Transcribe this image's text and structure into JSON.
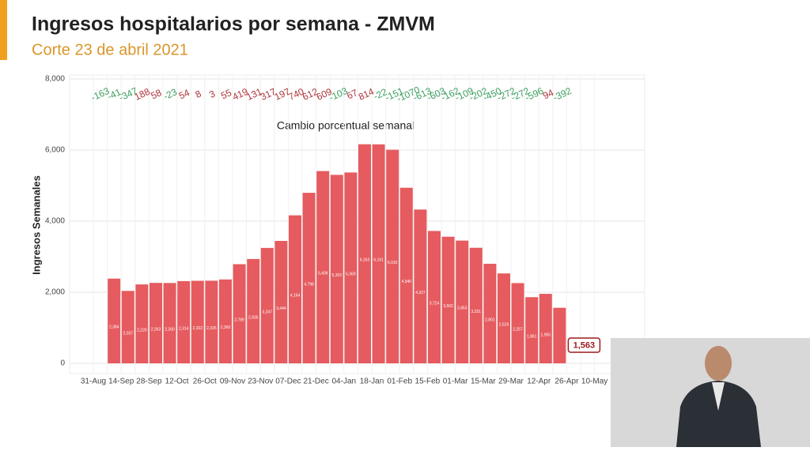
{
  "header": {
    "title": "Ingresos hospitalarios por semana - ZMVM",
    "subtitle": "Corte 23 de abril 2021"
  },
  "chart_data": {
    "type": "bar",
    "y_label": "Ingresos Semanales",
    "color": "#e55b5f",
    "categories": [
      "31-Aug",
      null,
      "14-Sep",
      null,
      "28-Sep",
      null,
      "12-Oct",
      null,
      "26-Oct",
      null,
      "09-Nov",
      null,
      "23-Nov",
      null,
      "07-Dec",
      null,
      "21-Dec",
      null,
      "04-Jan",
      null,
      "18-Jan",
      null,
      "01-Feb",
      null,
      "15-Feb",
      null,
      "01-Mar",
      null,
      "15-Mar",
      null,
      "29-Mar",
      null,
      "12-Apr",
      null,
      "26-Apr",
      null,
      "10-May"
    ],
    "values": [
      null,
      null,
      2384,
      2037,
      2220,
      2263,
      2260,
      2314,
      2322,
      2325,
      2360,
      2789,
      2935,
      3247,
      3444,
      4164,
      4798,
      5409,
      5302,
      5369,
      6163,
      6161,
      6010,
      4940,
      4327,
      3724,
      3562,
      3453,
      3251,
      2801,
      2529,
      2257,
      1861,
      1955,
      1563,
      null,
      null
    ],
    "value_labels": [
      null,
      null,
      "2,384",
      "2,037",
      "2,220",
      "2,263",
      "2,260",
      "2,314",
      "2,322",
      "2,325",
      "2,360",
      "2,789",
      "2,935",
      "3,247",
      "3,444",
      "4,164",
      "4,798",
      "5,409",
      "5,302",
      "5,369",
      "6,163",
      "6,161",
      "6,010",
      "4,940",
      "4,327",
      "3,724",
      "3,562",
      "3,453",
      "3,251",
      "2,801",
      "2,529",
      "2,257",
      "1,861",
      "1,955",
      "1,563",
      null,
      null
    ],
    "ylim": [
      0,
      8000
    ],
    "yticks": [
      0,
      {
        "value": 2000,
        "label": "2,000"
      },
      {
        "value": 4000,
        "label": "4,000"
      },
      {
        "value": 6000,
        "label": "6,000"
      },
      {
        "value": 8000,
        "label": "8,000"
      }
    ],
    "grid": true,
    "changes_title": "Cambio porcentual semanal",
    "changes": [
      -163,
      -41,
      -347,
      188,
      58,
      -23,
      54,
      8,
      3,
      55,
      419,
      131,
      317,
      197,
      740,
      612,
      609,
      -103,
      67,
      814,
      -22,
      -151,
      -1070,
      -613,
      -603,
      -162,
      -109,
      -202,
      -450,
      -272,
      -272,
      -596,
      94,
      -392
    ],
    "negative_color": "#3a9d5d",
    "positive_color": "#b0343a",
    "highlight_color": "#9b1c1c"
  }
}
